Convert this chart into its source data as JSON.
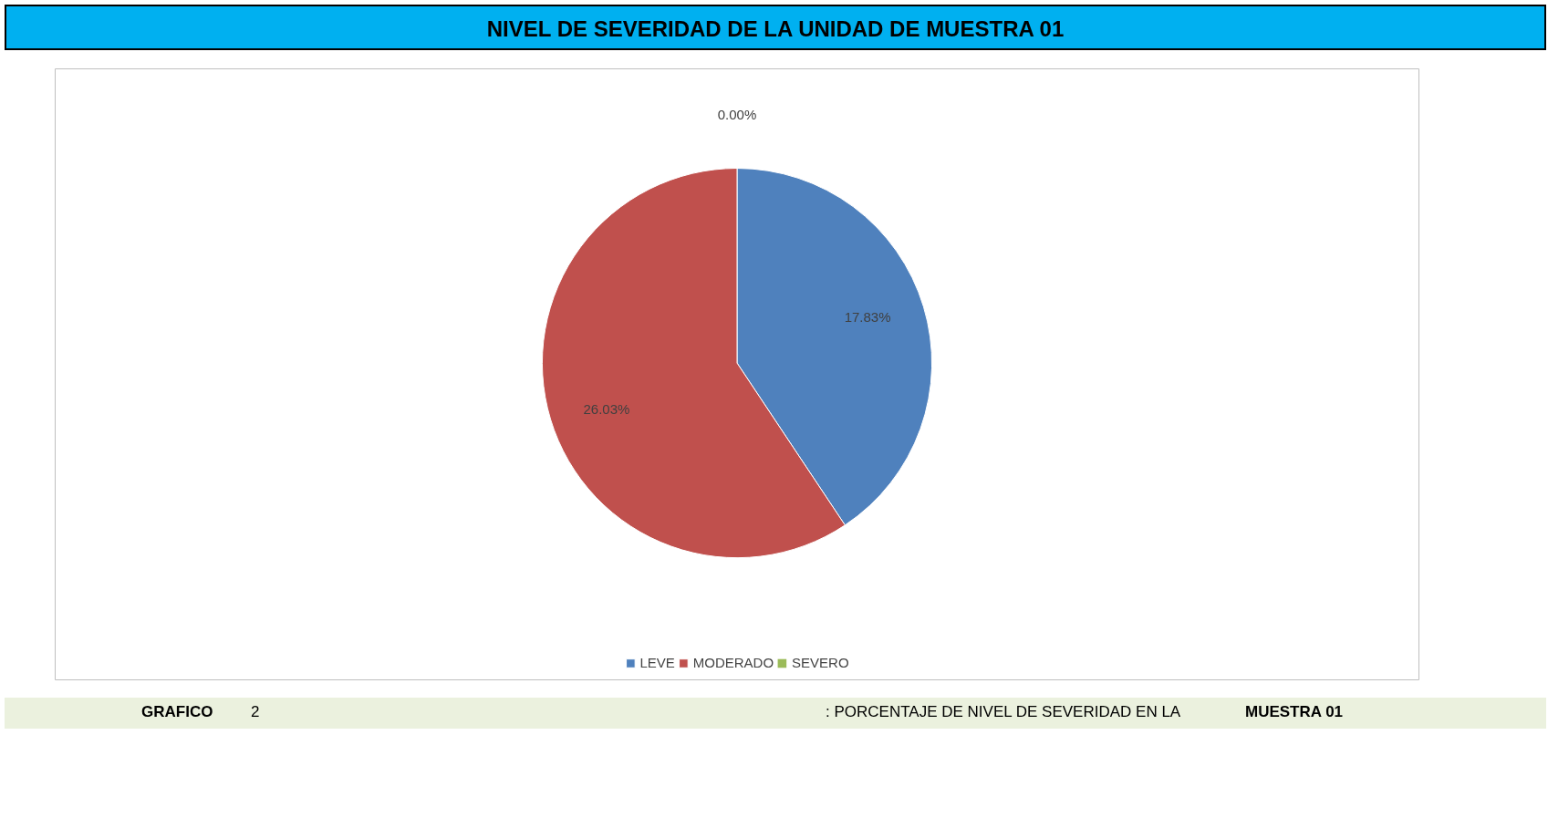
{
  "chart_data": {
    "type": "pie",
    "title": "NIVEL DE SEVERIDAD DE LA UNIDAD DE  MUESTRA 01",
    "categories": [
      "LEVE",
      "MODERADO",
      "SEVERO"
    ],
    "values": [
      17.83,
      26.03,
      0.0
    ],
    "colors": [
      "#4f81bd",
      "#c0504d",
      "#9bbb59"
    ],
    "value_labels": [
      "17.83%",
      "26.03%",
      "0.00%"
    ],
    "legend": "bottom",
    "annotations": [
      "GRAFICO",
      "2",
      ": PORCENTAJE DE NIVEL DE SEVERIDAD EN LA",
      "MUESTRA 01"
    ]
  }
}
